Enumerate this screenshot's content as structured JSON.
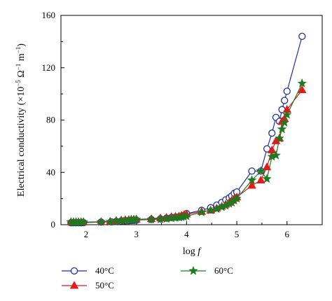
{
  "chart_data": {
    "type": "line",
    "xlabel_main": "log",
    "xlabel_var": "f",
    "ylabel_prefix": "Electrical conductivity (×10",
    "ylabel_exp1": "−5",
    "ylabel_mid": " Ω",
    "ylabel_exp2": "−1",
    "ylabel_mid2": " m",
    "ylabel_exp3": "−1",
    "ylabel_suffix": ")",
    "xlim": [
      1.5,
      6.7
    ],
    "ylim": [
      0,
      160
    ],
    "xticks": [
      2,
      3,
      4,
      5,
      6
    ],
    "yticks": [
      0,
      40,
      80,
      120,
      160
    ],
    "grid": false,
    "legend_position": "bottom",
    "series": [
      {
        "name": "40°C",
        "marker": "circle-open",
        "color": "#1f2f9c",
        "x": [
          1.7,
          1.75,
          1.8,
          1.85,
          1.9,
          1.95,
          2.3,
          2.5,
          2.6,
          2.7,
          2.75,
          2.8,
          2.85,
          2.9,
          2.95,
          3.0,
          3.3,
          3.48,
          3.6,
          3.7,
          3.78,
          3.85,
          3.9,
          3.95,
          4.0,
          4.3,
          4.48,
          4.6,
          4.7,
          4.78,
          4.85,
          4.9,
          4.95,
          5.0,
          5.3,
          5.48,
          5.6,
          5.7,
          5.78,
          5.85,
          5.9,
          5.95,
          6.0,
          6.3
        ],
        "y": [
          1.5,
          1.5,
          1.5,
          1.5,
          1.5,
          1.6,
          2,
          2.2,
          2.5,
          2.8,
          2.9,
          3,
          3.1,
          3.2,
          3.3,
          3.5,
          4,
          4.5,
          5,
          5.5,
          5.8,
          6,
          6.5,
          7,
          8.5,
          11,
          13,
          15,
          17,
          19,
          20.5,
          22,
          24,
          25,
          41,
          41,
          58,
          70,
          82,
          79,
          88,
          95,
          102,
          144
        ]
      },
      {
        "name": "50°C",
        "marker": "triangle-filled",
        "color": "#e31a1c",
        "x": [
          1.7,
          1.75,
          1.8,
          1.85,
          1.9,
          1.95,
          2.3,
          2.48,
          2.6,
          2.7,
          2.78,
          2.85,
          2.9,
          2.95,
          3.0,
          3.3,
          3.48,
          3.6,
          3.7,
          3.78,
          3.85,
          3.9,
          3.95,
          4.0,
          4.3,
          4.48,
          4.6,
          4.7,
          4.78,
          4.85,
          4.9,
          4.95,
          5.0,
          5.3,
          5.48,
          5.6,
          5.7,
          5.78,
          5.85,
          5.9,
          5.95,
          6.0,
          6.3
        ],
        "y": [
          2,
          2,
          2,
          2,
          2,
          2,
          2.2,
          2.5,
          3,
          3.5,
          3.7,
          3.8,
          4,
          4,
          4.1,
          4.5,
          5,
          5.5,
          6,
          6.2,
          6.5,
          7,
          7.5,
          8,
          10,
          11,
          12.5,
          14,
          15.5,
          17,
          18.5,
          20,
          21,
          30,
          34,
          44,
          57,
          64,
          66,
          79,
          81,
          88,
          103
        ]
      },
      {
        "name": "60°C",
        "marker": "star-filled",
        "color": "#1f7a1f",
        "x": [
          1.7,
          1.75,
          1.8,
          1.85,
          1.9,
          1.95,
          2.3,
          2.48,
          2.6,
          2.7,
          2.78,
          2.85,
          2.9,
          2.95,
          3.0,
          3.3,
          3.48,
          3.6,
          3.7,
          3.78,
          3.85,
          3.9,
          3.95,
          4.0,
          4.3,
          4.48,
          4.6,
          4.7,
          4.78,
          4.85,
          4.9,
          4.95,
          5.0,
          5.3,
          5.48,
          5.6,
          5.7,
          5.78,
          5.85,
          5.9,
          5.95,
          6.0,
          6.3
        ],
        "y": [
          2,
          2,
          2,
          2,
          2,
          2,
          2,
          2.2,
          2.8,
          3,
          3.2,
          3.5,
          3.7,
          3.8,
          4,
          4,
          4.2,
          4.5,
          5,
          5.2,
          5.5,
          5.8,
          6,
          6.5,
          9.5,
          11,
          12,
          13.5,
          14.5,
          16,
          17,
          18.5,
          20,
          34,
          41,
          35,
          52,
          53,
          66,
          73,
          78,
          84,
          108
        ]
      }
    ]
  }
}
